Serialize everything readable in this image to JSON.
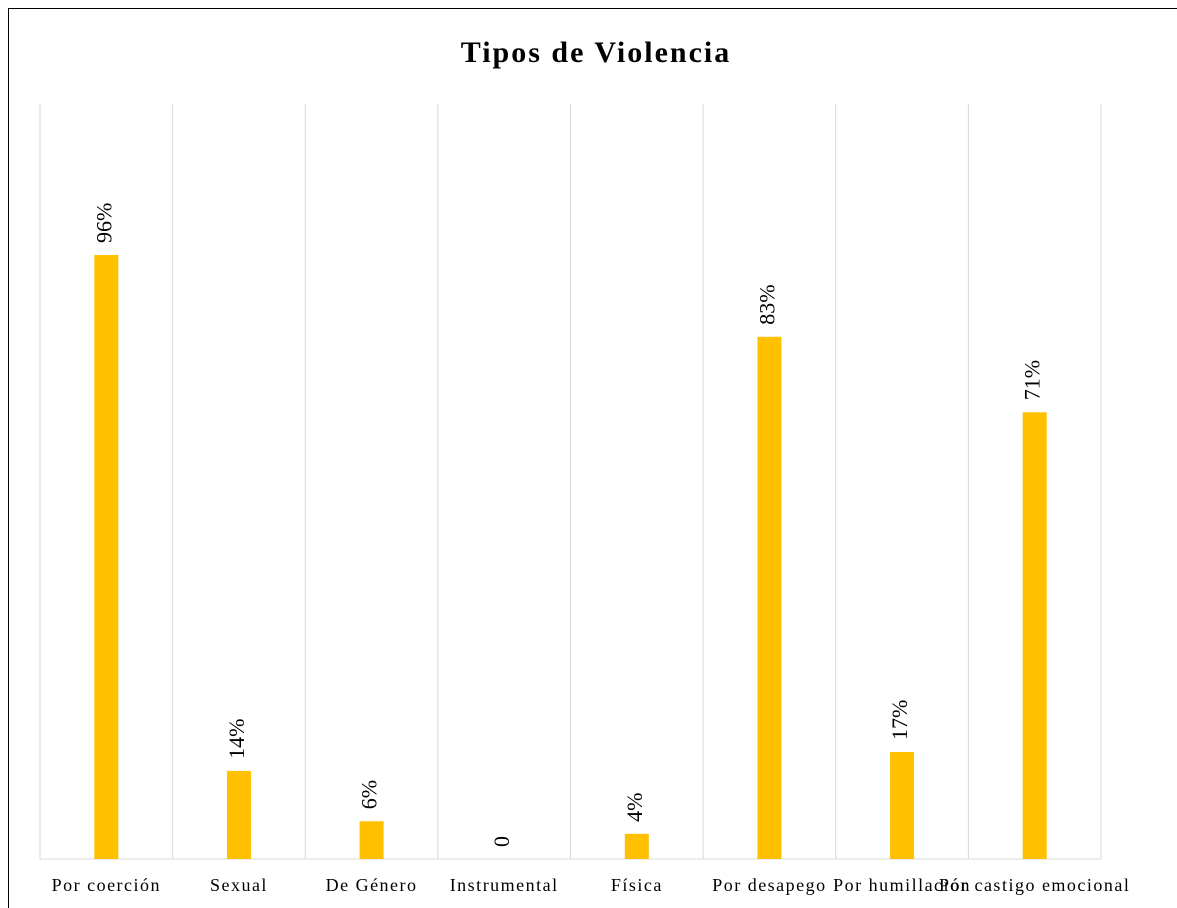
{
  "chart_data": {
    "type": "bar",
    "title": "Tipos de Violencia",
    "categories": [
      "Por coerción",
      "Sexual",
      "De Género",
      "Instrumental",
      "Física",
      "Por desapego",
      "Por humillación",
      "Por castigo emocional"
    ],
    "values": [
      96,
      14,
      6,
      0,
      4,
      83,
      17,
      71
    ],
    "value_labels": [
      "96%",
      "14%",
      "6%",
      "0",
      "4%",
      "83%",
      "17%",
      "71%"
    ],
    "color": "#ffc000",
    "ylim": [
      0,
      120
    ]
  }
}
